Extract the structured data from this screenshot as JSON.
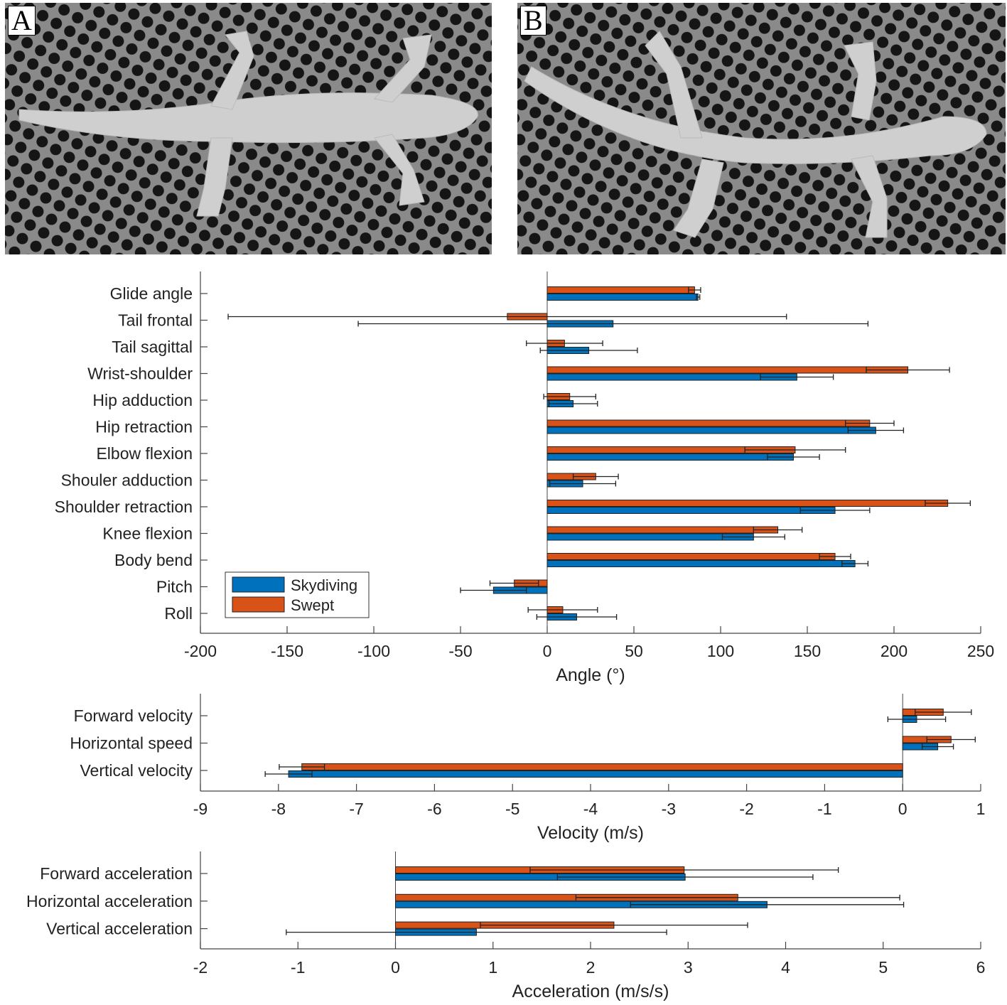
{
  "panels": [
    {
      "letter": "A",
      "image": "gecko-photo-skydiving-posture"
    },
    {
      "letter": "B",
      "image": "gecko-photo-swept-posture"
    }
  ],
  "colors": {
    "Skydiving": "#0072BD",
    "Swept": "#D95319"
  },
  "chart_data": [
    {
      "type": "bar",
      "orientation": "horizontal",
      "xlabel": "Angle (°)",
      "xlim": [
        -200,
        250
      ],
      "xticks": [
        -200,
        -150,
        -100,
        -50,
        0,
        50,
        100,
        150,
        200,
        250
      ],
      "categories": [
        "Glide angle",
        "Tail frontal",
        "Tail sagittal",
        "Wrist-shoulder",
        "Hip adduction",
        "Hip retraction",
        "Elbow flexion",
        "Shouler adduction",
        "Shoulder retraction",
        "Knee flexion",
        "Body bend",
        "Pitch",
        "Roll"
      ],
      "legend": {
        "position": "bottom-left",
        "entries": [
          "Skydiving",
          "Swept"
        ]
      },
      "series": [
        {
          "name": "Skydiving",
          "values": [
            87,
            38,
            24,
            144,
            15,
            189.5,
            142,
            20.5,
            166,
            119,
            177.5,
            -31,
            17
          ],
          "errors": [
            1,
            147,
            28,
            21,
            14,
            16,
            15,
            19,
            20,
            18,
            7.5,
            19,
            23
          ]
        },
        {
          "name": "Swept",
          "values": [
            85,
            -23,
            10,
            208,
            13,
            186,
            143,
            28,
            231,
            133,
            166,
            -19,
            9
          ],
          "errors": [
            3.5,
            161,
            22,
            24,
            15,
            14,
            29,
            13,
            13,
            14,
            9,
            14,
            20
          ]
        }
      ]
    },
    {
      "type": "bar",
      "orientation": "horizontal",
      "xlabel": "Velocity (m/s)",
      "xlim": [
        -9,
        1
      ],
      "xticks": [
        -9,
        -8,
        -7,
        -6,
        -5,
        -4,
        -3,
        -2,
        -1,
        0,
        1
      ],
      "categories": [
        "Forward velocity",
        "Horizontal speed",
        "Vertical velocity"
      ],
      "series": [
        {
          "name": "Skydiving",
          "values": [
            0.18,
            0.45,
            -7.87
          ],
          "errors": [
            0.37,
            0.2,
            0.3
          ]
        },
        {
          "name": "Swept",
          "values": [
            0.52,
            0.62,
            -7.7
          ],
          "errors": [
            0.36,
            0.31,
            0.29
          ]
        }
      ]
    },
    {
      "type": "bar",
      "orientation": "horizontal",
      "xlabel": "Acceleration (m/s/s)",
      "xlim": [
        -2,
        6
      ],
      "xticks": [
        -2,
        -1,
        0,
        1,
        2,
        3,
        4,
        5,
        6
      ],
      "categories": [
        "Forward acceleration",
        "Horizontal acceleration",
        "Vertical acceleration"
      ],
      "series": [
        {
          "name": "Skydiving",
          "values": [
            2.97,
            3.81,
            0.83
          ],
          "errors": [
            1.31,
            1.4,
            1.95
          ]
        },
        {
          "name": "Swept",
          "values": [
            2.96,
            3.51,
            2.24
          ],
          "errors": [
            1.58,
            1.66,
            1.37
          ]
        }
      ]
    }
  ]
}
